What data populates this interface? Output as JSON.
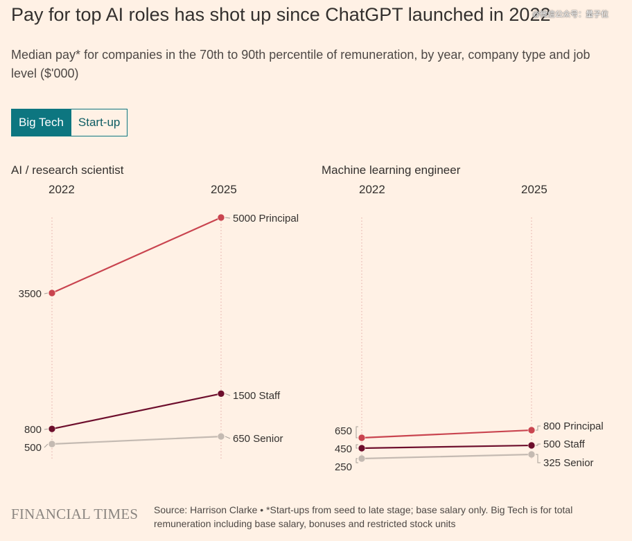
{
  "header": {
    "title": "Pay for top AI roles has shot up since ChatGPT launched in 2022",
    "watermark": "@微信公众号：量子位",
    "subtitle": "Median pay* for companies in the 70th to 90th percentile of remuneration, by year, company type and job level ($'000)"
  },
  "toggle": {
    "options": [
      "Big Tech",
      "Start-up"
    ],
    "selected": "Big Tech",
    "accent_color": "#0d7680"
  },
  "chart_data": [
    {
      "type": "line",
      "title": "AI / research scientist",
      "x": [
        "2022",
        "2025"
      ],
      "ylim": [
        500,
        5000
      ],
      "grid": false,
      "series": [
        {
          "name": "Principal",
          "values": [
            3500,
            5000
          ],
          "color": "#c9444f"
        },
        {
          "name": "Staff",
          "values": [
            800,
            1500
          ],
          "color": "#6d0e2c"
        },
        {
          "name": "Senior",
          "values": [
            500,
            650
          ],
          "color": "#c4bab2"
        }
      ],
      "left_labels": [
        "3500",
        "800",
        "500"
      ],
      "right_labels": [
        "5000 Principal",
        "1500 Staff",
        "650 Senior"
      ]
    },
    {
      "type": "line",
      "title": "Machine learning engineer",
      "x": [
        "2022",
        "2025"
      ],
      "ylim": [
        250,
        800
      ],
      "grid": false,
      "series": [
        {
          "name": "Principal",
          "values": [
            650,
            800
          ],
          "color": "#c9444f"
        },
        {
          "name": "Staff",
          "values": [
            450,
            500
          ],
          "color": "#6d0e2c"
        },
        {
          "name": "Senior",
          "values": [
            250,
            325
          ],
          "color": "#c4bab2"
        }
      ],
      "left_labels": [
        "650",
        "450",
        "250"
      ],
      "right_labels": [
        "800 Principal",
        "500 Staff",
        "325 Senior"
      ]
    }
  ],
  "footer": {
    "logo": "FINANCIAL TIMES",
    "source": "Source: Harrison Clarke • *Start-ups from seed to late stage; base salary only. Big Tech is for total remuneration including base salary, bonuses and restricted stock units"
  }
}
